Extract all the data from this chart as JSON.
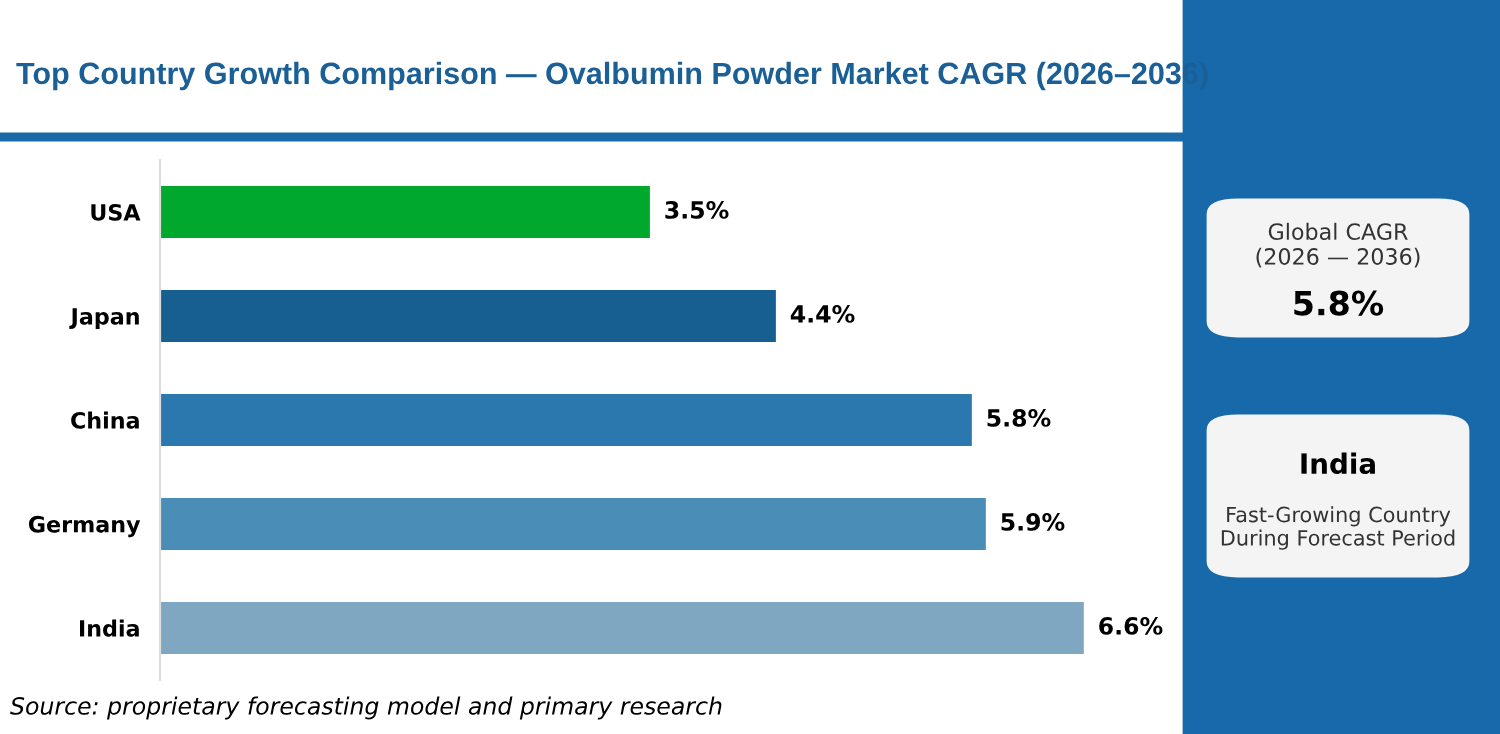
{
  "chart_data": {
    "type": "bar",
    "orientation": "horizontal",
    "title": "Top Country Growth Comparison — Ovalbumin Powder Market CAGR (2026–2036)",
    "categories": [
      "USA",
      "Japan",
      "China",
      "Germany",
      "India"
    ],
    "values": [
      3.5,
      4.4,
      5.8,
      5.9,
      6.6
    ],
    "colors": [
      "#00a82d",
      "#175f91",
      "#2a78ad",
      "#4a8db6",
      "#7fa7c1"
    ],
    "value_labels": [
      "3.5%",
      "4.4%",
      "5.8%",
      "5.9%",
      "6.6%"
    ],
    "tick_labels": "y",
    "grid": false,
    "annotations": [
      "Source: proprietary forecasting model and primary research",
      "Global CAGR\n(2026 — 2036)",
      "5.8%",
      "India",
      "Fast-Growing Country\nDuring Forecast Period"
    ]
  }
}
